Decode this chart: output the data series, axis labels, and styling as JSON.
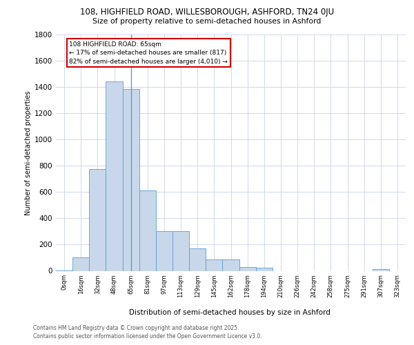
{
  "title_line1": "108, HIGHFIELD ROAD, WILLESBOROUGH, ASHFORD, TN24 0JU",
  "title_line2": "Size of property relative to semi-detached houses in Ashford",
  "xlabel": "Distribution of semi-detached houses by size in Ashford",
  "ylabel": "Number of semi-detached properties",
  "categories": [
    "0sqm",
    "16sqm",
    "32sqm",
    "48sqm",
    "65sqm",
    "81sqm",
    "97sqm",
    "113sqm",
    "129sqm",
    "145sqm",
    "162sqm",
    "178sqm",
    "194sqm",
    "210sqm",
    "226sqm",
    "242sqm",
    "258sqm",
    "275sqm",
    "291sqm",
    "307sqm",
    "323sqm"
  ],
  "values": [
    5,
    100,
    775,
    1445,
    1385,
    610,
    300,
    300,
    170,
    85,
    85,
    30,
    22,
    0,
    0,
    0,
    0,
    0,
    0,
    15,
    0
  ],
  "bar_color": "#c8d8ea",
  "bar_edge_color": "#5b9bd5",
  "highlight_idx": 4,
  "annotation_title": "108 HIGHFIELD ROAD: 65sqm",
  "annotation_line1": "← 17% of semi-detached houses are smaller (817)",
  "annotation_line2": "82% of semi-detached houses are larger (4,010) →",
  "annotation_box_edge": "#cc0000",
  "footer_line1": "Contains HM Land Registry data © Crown copyright and database right 2025.",
  "footer_line2": "Contains public sector information licensed under the Open Government Licence v3.0.",
  "bg_color": "#ffffff",
  "grid_color": "#d0d8ee",
  "ylim_max": 1800,
  "yticks": [
    0,
    200,
    400,
    600,
    800,
    1000,
    1200,
    1400,
    1600,
    1800
  ]
}
